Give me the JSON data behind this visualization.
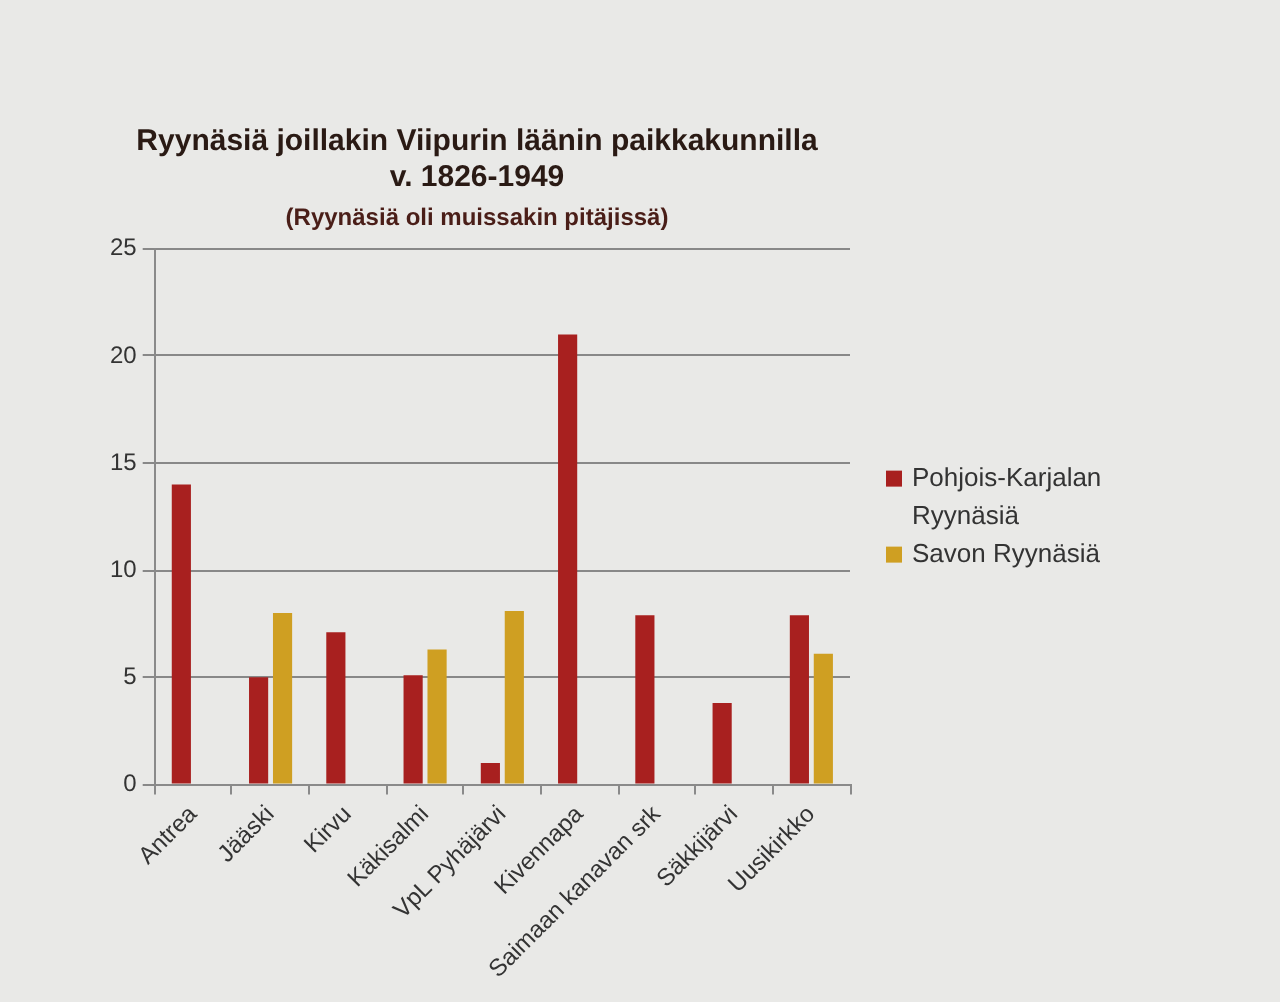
{
  "chart_data": {
    "type": "bar",
    "title": "Ryynäsiä joillakin Viipurin läänin paikkakunnilla\nv. 1826-1949",
    "subtitle": "(Ryynäsiä oli muissakin pitäjissä)",
    "categories": [
      "Antrea",
      "Jääski",
      "Kirvu",
      "Käkisalmi",
      "VpL Pyhäjärvi",
      "Kivennapa",
      "Saimaan kanavan srk",
      "Säkkijärvi",
      "Uusikirkko"
    ],
    "series": [
      {
        "name": "Pohjois-Karjalan Ryynäsiä",
        "color": "#a8201f",
        "values": [
          14,
          5,
          7.1,
          5.1,
          1,
          21,
          7.9,
          3.8,
          7.9
        ]
      },
      {
        "name": "Savon Ryynäsiä",
        "color": "#cf9f22",
        "values": [
          null,
          8,
          null,
          6.3,
          8.1,
          null,
          null,
          null,
          6.1
        ]
      }
    ],
    "ylim": [
      0,
      25
    ],
    "yticks": [
      0,
      5,
      10,
      15,
      20,
      25
    ],
    "grid": "y",
    "legend": "right"
  }
}
